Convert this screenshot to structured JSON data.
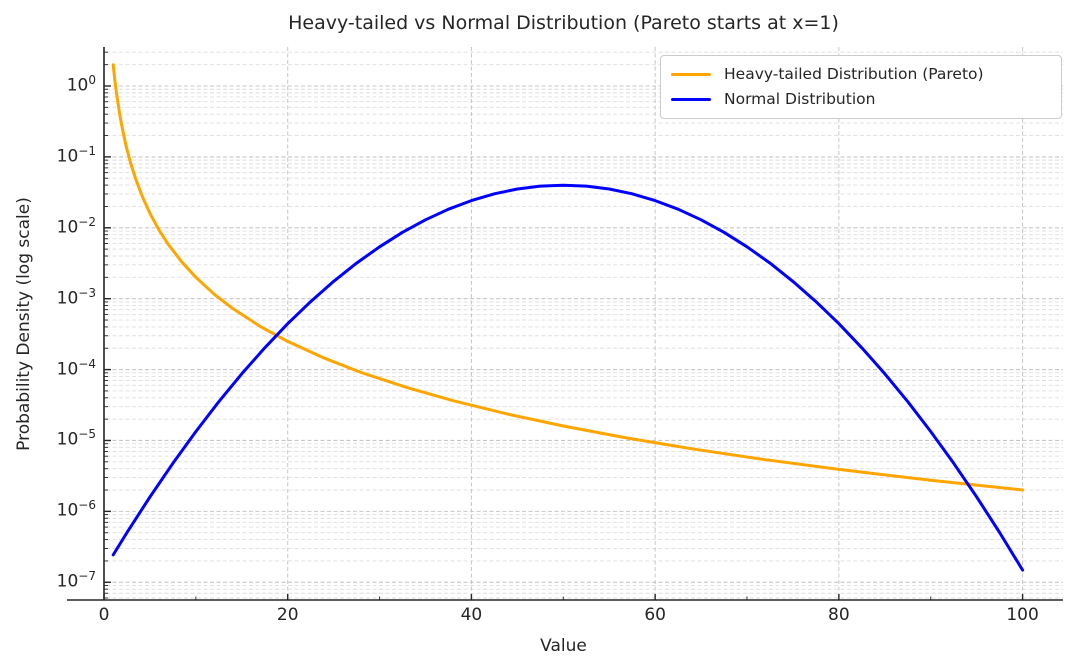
{
  "chart_data": {
    "type": "line",
    "title": "Heavy-tailed vs Normal Distribution (Pareto starts at x=1)",
    "xlabel": "Value",
    "ylabel": "Probability Density (log scale)",
    "x_ticks": [
      0,
      20,
      40,
      60,
      80,
      100
    ],
    "x_minor_step": 10,
    "xlim": [
      0,
      104.4
    ],
    "yscale": "log",
    "ylim_log10": [
      -7.25,
      0.55
    ],
    "y_major_exponents": [
      0,
      -1,
      -2,
      -3,
      -4,
      -5,
      -6,
      -7
    ],
    "grid": {
      "horizontal_major": true,
      "horizontal_minor": true,
      "vertical_at_major_x": true,
      "dash": "4 2.5",
      "major_color": "#c7c7c7",
      "minor_color": "#dedede"
    },
    "axis": {
      "spine_color": "#262626",
      "text_color": "#262626",
      "tick_direction": "in"
    },
    "legend": {
      "position": "upper right",
      "border_color": "#cccccc",
      "background": "#ffffff"
    },
    "series": [
      {
        "name": "Heavy-tailed Distribution (Pareto)",
        "color": "#FFA500",
        "width": 3,
        "x": [
          1,
          1.1,
          1.2,
          1.4,
          1.7,
          2,
          2.4,
          2.9,
          3.5,
          4.2,
          5,
          6,
          7,
          8.5,
          10,
          12,
          14,
          17,
          20,
          24,
          28,
          33,
          38,
          44,
          50,
          57,
          64,
          72,
          80,
          90,
          100
        ],
        "y": [
          2,
          1.5026,
          1.1574,
          0.72886,
          0.40709,
          0.25,
          0.144676,
          0.082005,
          0.046647,
          0.026995,
          0.016,
          0.0092593,
          0.0058309,
          0.0032567,
          0.002,
          0.0011574,
          0.00072886,
          0.00040708,
          0.00025,
          0.00014468,
          9.1108e-05,
          5.565e-05,
          3.6448e-05,
          2.3479e-05,
          1.6e-05,
          1.08e-05,
          7.6294e-06,
          5.3584e-06,
          3.9063e-06,
          2.7435e-06,
          2e-06
        ]
      },
      {
        "name": "Normal Distribution",
        "color": "#0000FF",
        "width": 3,
        "x": [
          1,
          2.5,
          5,
          7.5,
          10,
          12.5,
          15,
          17.5,
          20,
          22.5,
          25,
          27.5,
          30,
          32.5,
          35,
          37.5,
          40,
          42.5,
          45,
          47.5,
          50,
          52.5,
          55,
          57.5,
          60,
          62.5,
          65,
          67.5,
          70,
          72.5,
          75,
          77.5,
          80,
          82.5,
          85,
          87.5,
          90,
          92.5,
          95,
          97.5,
          100
        ],
        "y": [
          2.432e-07,
          5.03e-07,
          1.594e-06,
          4.772e-06,
          1.3383e-05,
          3.526e-05,
          8.727e-05,
          0.0002029,
          0.00044318,
          0.0009094,
          0.0017528,
          0.003174,
          0.0053991,
          0.008628,
          0.0129518,
          0.018265,
          0.0241971,
          0.0301139,
          0.0352065,
          0.0386668,
          0.0398942,
          0.0386668,
          0.0352065,
          0.0301139,
          0.0241971,
          0.018265,
          0.0129518,
          0.008628,
          0.0053991,
          0.003174,
          0.0017528,
          0.0009094,
          0.00044318,
          0.0002029,
          8.727e-05,
          3.526e-05,
          1.3383e-05,
          4.772e-06,
          1.594e-06,
          5.03e-07,
          1.487e-07
        ]
      }
    ]
  }
}
